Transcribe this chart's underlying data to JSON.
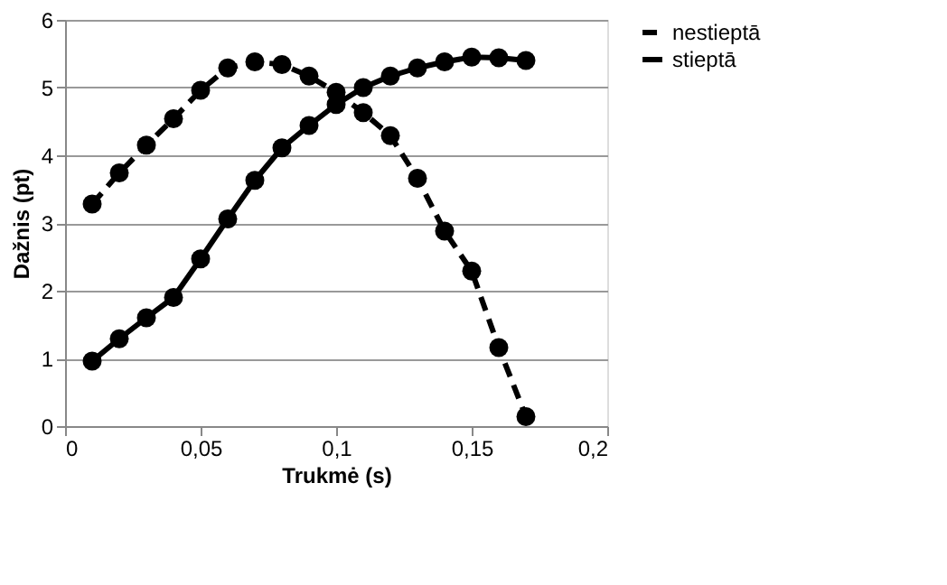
{
  "chart_data": {
    "type": "line",
    "xlabel": "Trukmė (s)",
    "ylabel": "Dažnis (pt)",
    "x": [
      0.01,
      0.02,
      0.03,
      0.04,
      0.05,
      0.06,
      0.07,
      0.08,
      0.09,
      0.1,
      0.11,
      0.12,
      0.13,
      0.14,
      0.15,
      0.16,
      0.17
    ],
    "series": [
      {
        "name": "nestieptā",
        "color": "#000000",
        "line_style": "dashed",
        "values": [
          3.28,
          3.74,
          4.15,
          4.54,
          4.96,
          5.29,
          5.38,
          5.34,
          5.17,
          4.93,
          4.63,
          4.29,
          3.66,
          2.88,
          2.29,
          1.16,
          0.14
        ]
      },
      {
        "name": "stieptā",
        "color": "#000000",
        "line_style": "solid",
        "values": [
          0.96,
          1.29,
          1.6,
          1.9,
          2.47,
          3.06,
          3.63,
          4.11,
          4.44,
          4.75,
          5.0,
          5.17,
          5.29,
          5.38,
          5.45,
          5.44,
          5.4
        ]
      }
    ],
    "xlim": [
      0,
      0.2
    ],
    "ylim": [
      0,
      6
    ],
    "xticks": [
      0,
      {
        "value": 0.05,
        "label": "0,05"
      },
      {
        "value": 0.1,
        "label": "0,1"
      },
      {
        "value": 0.15,
        "label": "0,15"
      },
      {
        "value": 0.2,
        "label": "0,2"
      }
    ],
    "yticks": [
      0,
      1,
      2,
      3,
      4,
      5,
      6
    ],
    "grid": "y",
    "legend": "right",
    "marker": "circle"
  }
}
